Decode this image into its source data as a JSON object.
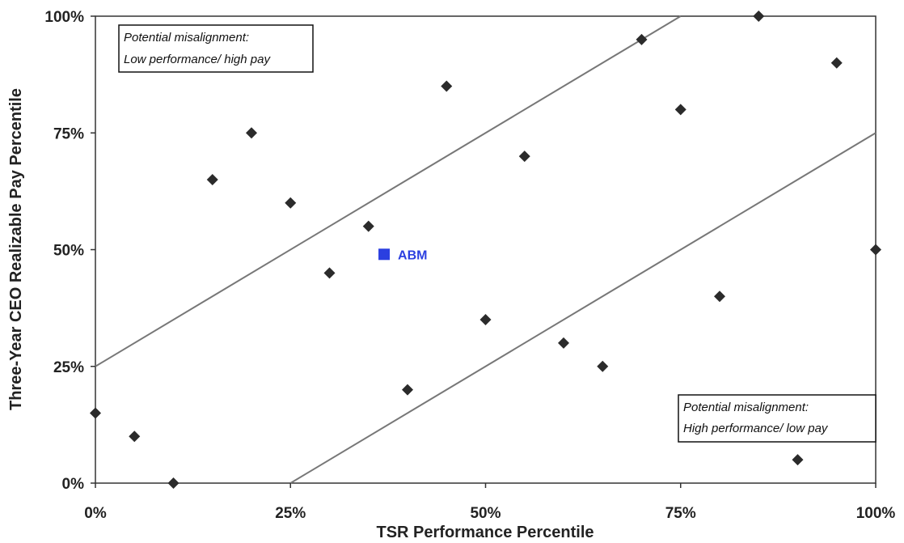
{
  "chart_data": {
    "type": "scatter",
    "title": "",
    "xlabel": "TSR Performance Percentile",
    "ylabel": "Three-Year CEO Realizable Pay Percentile",
    "xlim": [
      0,
      100
    ],
    "ylim": [
      0,
      100
    ],
    "x_ticks": [
      "0%",
      "25%",
      "50%",
      "75%",
      "100%"
    ],
    "y_ticks": [
      "0%",
      "25%",
      "50%",
      "75%",
      "100%"
    ],
    "grid": false,
    "series": [
      {
        "marker": "diamond",
        "color": "#2b2b2b",
        "points": [
          {
            "x": 0,
            "y": 15
          },
          {
            "x": 5,
            "y": 10
          },
          {
            "x": 10,
            "y": 0
          },
          {
            "x": 15,
            "y": 65
          },
          {
            "x": 20,
            "y": 75
          },
          {
            "x": 25,
            "y": 60
          },
          {
            "x": 30,
            "y": 45
          },
          {
            "x": 35,
            "y": 55
          },
          {
            "x": 40,
            "y": 20
          },
          {
            "x": 45,
            "y": 85
          },
          {
            "x": 50,
            "y": 35
          },
          {
            "x": 55,
            "y": 70
          },
          {
            "x": 60,
            "y": 30
          },
          {
            "x": 65,
            "y": 25
          },
          {
            "x": 70,
            "y": 95
          },
          {
            "x": 75,
            "y": 80
          },
          {
            "x": 80,
            "y": 40
          },
          {
            "x": 85,
            "y": 100
          },
          {
            "x": 90,
            "y": 5
          },
          {
            "x": 95,
            "y": 90
          },
          {
            "x": 100,
            "y": 50
          }
        ]
      }
    ],
    "highlight": {
      "label": "ABM",
      "x": 37,
      "y": 49,
      "marker": "square",
      "color": "#2b3fe0"
    },
    "reference_lines": [
      {
        "x": [
          0,
          75
        ],
        "y": [
          25,
          100
        ],
        "color": "#777777"
      },
      {
        "x": [
          25,
          100
        ],
        "y": [
          0,
          75
        ],
        "color": "#777777"
      }
    ],
    "annotations": [
      {
        "lines": [
          "Potential misalignment:",
          "Low performance/ high pay"
        ],
        "placement": "top-left"
      },
      {
        "lines": [
          "Potential misalignment:",
          "High performance/ low pay"
        ],
        "placement": "bottom-right"
      }
    ]
  }
}
